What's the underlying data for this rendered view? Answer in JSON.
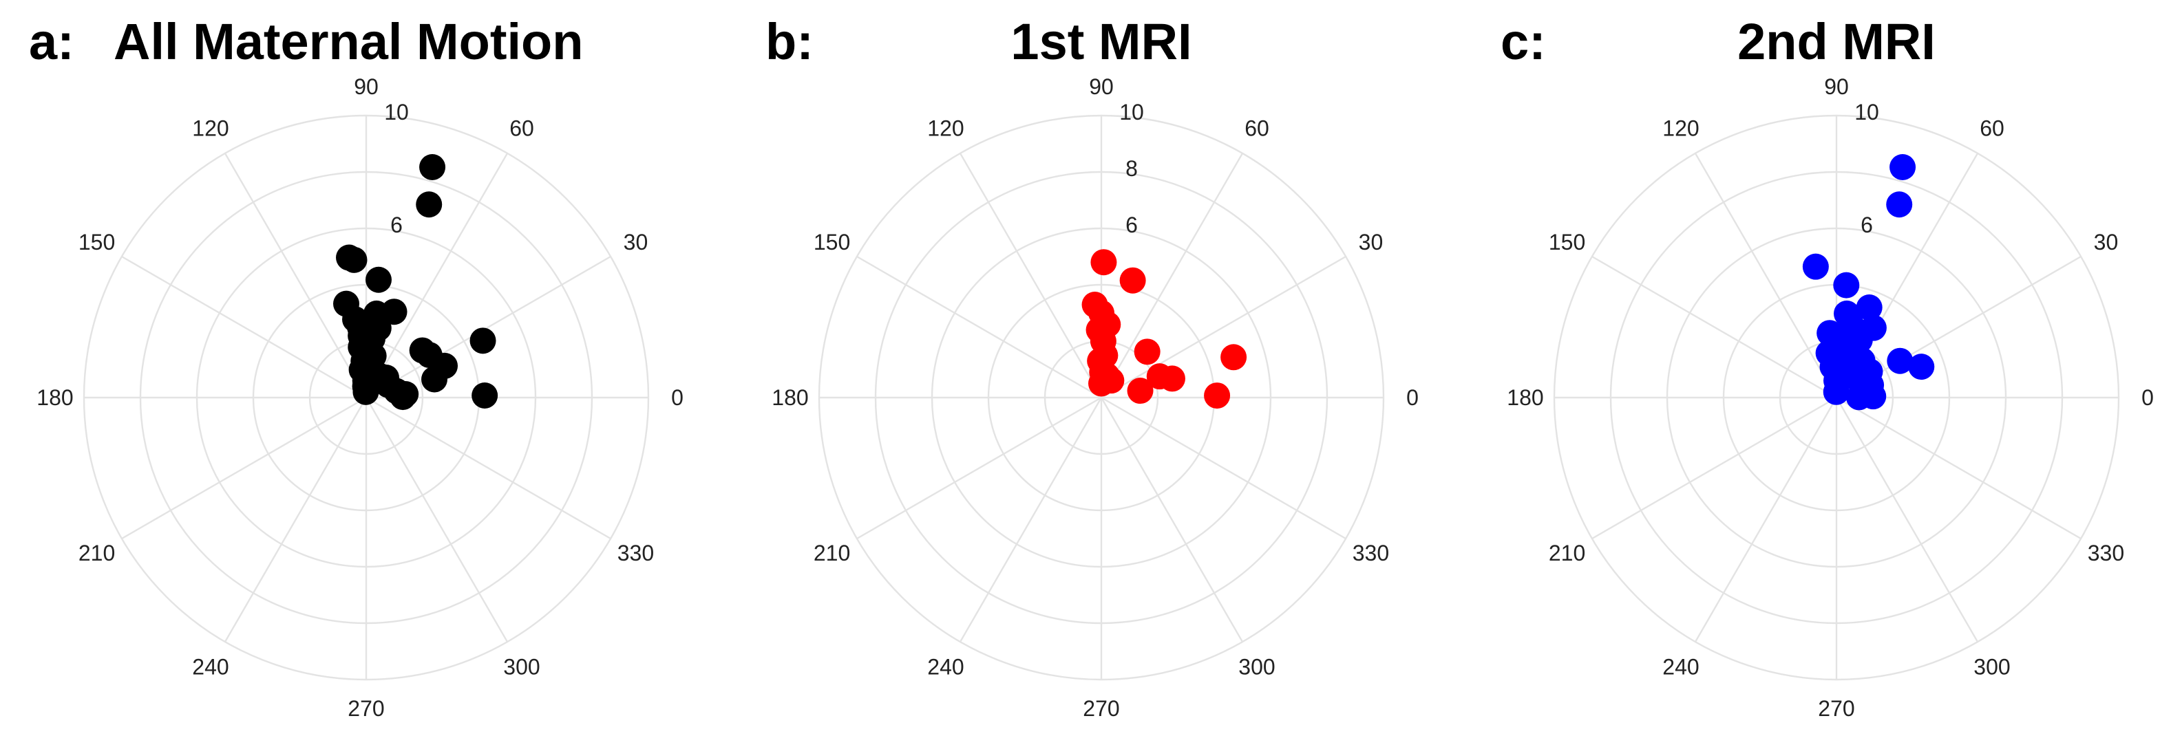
{
  "chart_data": [
    {
      "type": "scatter",
      "subtype": "polar",
      "panel_letter": "a:",
      "title": "All Maternal Motion",
      "color": "#000000",
      "angle_ticks": [
        0,
        30,
        60,
        90,
        120,
        150,
        180,
        210,
        240,
        270,
        300,
        330
      ],
      "angle_unit": "degrees",
      "radial_range": [
        0,
        10
      ],
      "radial_ring_values": [
        2,
        4,
        6,
        8,
        10
      ],
      "radial_tick_labels": [
        "6",
        "10"
      ],
      "grid": true,
      "points": [
        {
          "theta": 74,
          "r": 8.5
        },
        {
          "theta": 72,
          "r": 7.2
        },
        {
          "theta": 97,
          "r": 5.0
        },
        {
          "theta": 95,
          "r": 4.9
        },
        {
          "theta": 84,
          "r": 4.2
        },
        {
          "theta": 102,
          "r": 3.4
        },
        {
          "theta": 72,
          "r": 3.2
        },
        {
          "theta": 83,
          "r": 3.0
        },
        {
          "theta": 98,
          "r": 2.8
        },
        {
          "theta": 80,
          "r": 2.5
        },
        {
          "theta": 95,
          "r": 2.5
        },
        {
          "theta": 84,
          "r": 2.1
        },
        {
          "theta": 95,
          "r": 2.2
        },
        {
          "theta": 90,
          "r": 2.0
        },
        {
          "theta": 96,
          "r": 1.8
        },
        {
          "theta": 92,
          "r": 1.5
        },
        {
          "theta": 94,
          "r": 1.3
        },
        {
          "theta": 99,
          "r": 1.0
        },
        {
          "theta": 90,
          "r": 0.9
        },
        {
          "theta": 93,
          "r": 0.6
        },
        {
          "theta": 95,
          "r": 0.4
        },
        {
          "theta": 94,
          "r": 0.2
        },
        {
          "theta": 60,
          "r": 0.9
        },
        {
          "theta": 45,
          "r": 1.0
        },
        {
          "theta": 30,
          "r": 0.9
        },
        {
          "theta": 12,
          "r": 1.1
        },
        {
          "theta": 40,
          "r": 2.6
        },
        {
          "theta": 34,
          "r": 2.7
        },
        {
          "theta": 22,
          "r": 3.0
        },
        {
          "theta": 15,
          "r": 2.5
        },
        {
          "theta": 26,
          "r": 4.6
        },
        {
          "theta": 1,
          "r": 4.2
        },
        {
          "theta": 5,
          "r": 1.4
        },
        {
          "theta": 1,
          "r": 1.3
        },
        {
          "theta": 80,
          "r": 1.5
        },
        {
          "theta": 86,
          "r": 0.6
        }
      ]
    },
    {
      "type": "scatter",
      "subtype": "polar",
      "panel_letter": "b:",
      "title": "1st MRI",
      "color": "#ff0000",
      "angle_ticks": [
        0,
        30,
        60,
        90,
        120,
        150,
        180,
        210,
        240,
        270,
        300,
        330
      ],
      "angle_unit": "degrees",
      "radial_range": [
        0,
        10
      ],
      "radial_ring_values": [
        2,
        4,
        6,
        8,
        10
      ],
      "radial_tick_labels": [
        "6",
        "8",
        "10"
      ],
      "grid": true,
      "points": [
        {
          "theta": 89,
          "r": 4.8
        },
        {
          "theta": 75,
          "r": 4.3
        },
        {
          "theta": 94,
          "r": 3.3
        },
        {
          "theta": 90,
          "r": 3.0
        },
        {
          "theta": 85,
          "r": 2.6
        },
        {
          "theta": 92,
          "r": 2.4
        },
        {
          "theta": 88,
          "r": 2.0
        },
        {
          "theta": 85,
          "r": 1.5
        },
        {
          "theta": 92,
          "r": 1.3
        },
        {
          "theta": 88,
          "r": 0.9
        },
        {
          "theta": 83,
          "r": 0.7
        },
        {
          "theta": 90,
          "r": 0.5
        },
        {
          "theta": 76,
          "r": 0.8
        },
        {
          "theta": 60,
          "r": 0.7
        },
        {
          "theta": 10,
          "r": 1.4
        },
        {
          "theta": 20,
          "r": 2.2
        },
        {
          "theta": 15,
          "r": 2.6
        },
        {
          "theta": 45,
          "r": 2.3
        },
        {
          "theta": 17,
          "r": 4.9
        },
        {
          "theta": 1,
          "r": 4.1
        }
      ]
    },
    {
      "type": "scatter",
      "subtype": "polar",
      "panel_letter": "c:",
      "title": "2nd MRI",
      "color": "#0000ff",
      "angle_ticks": [
        0,
        30,
        60,
        90,
        120,
        150,
        180,
        210,
        240,
        270,
        300,
        330
      ],
      "angle_unit": "degrees",
      "radial_range": [
        0,
        10
      ],
      "radial_ring_values": [
        2,
        4,
        6,
        8,
        10
      ],
      "radial_tick_labels": [
        "6",
        "10"
      ],
      "grid": true,
      "points": [
        {
          "theta": 74,
          "r": 8.5
        },
        {
          "theta": 72,
          "r": 7.2
        },
        {
          "theta": 99,
          "r": 4.7
        },
        {
          "theta": 85,
          "r": 4.0
        },
        {
          "theta": 70,
          "r": 3.4
        },
        {
          "theta": 83,
          "r": 3.0
        },
        {
          "theta": 62,
          "r": 2.8
        },
        {
          "theta": 78,
          "r": 2.6
        },
        {
          "theta": 68,
          "r": 2.2
        },
        {
          "theta": 96,
          "r": 2.3
        },
        {
          "theta": 88,
          "r": 2.0
        },
        {
          "theta": 74,
          "r": 1.8
        },
        {
          "theta": 55,
          "r": 1.6
        },
        {
          "theta": 30,
          "r": 2.6
        },
        {
          "theta": 20,
          "r": 3.2
        },
        {
          "theta": 38,
          "r": 1.5
        },
        {
          "theta": 100,
          "r": 1.6
        },
        {
          "theta": 97,
          "r": 1.1
        },
        {
          "theta": 80,
          "r": 1.0
        },
        {
          "theta": 60,
          "r": 0.9
        },
        {
          "theta": 90,
          "r": 0.6
        },
        {
          "theta": 92,
          "r": 0.2
        },
        {
          "theta": 20,
          "r": 1.3
        },
        {
          "theta": 5,
          "r": 1.2
        },
        {
          "theta": 2,
          "r": 1.3
        },
        {
          "theta": 1,
          "r": 0.8
        }
      ]
    }
  ]
}
